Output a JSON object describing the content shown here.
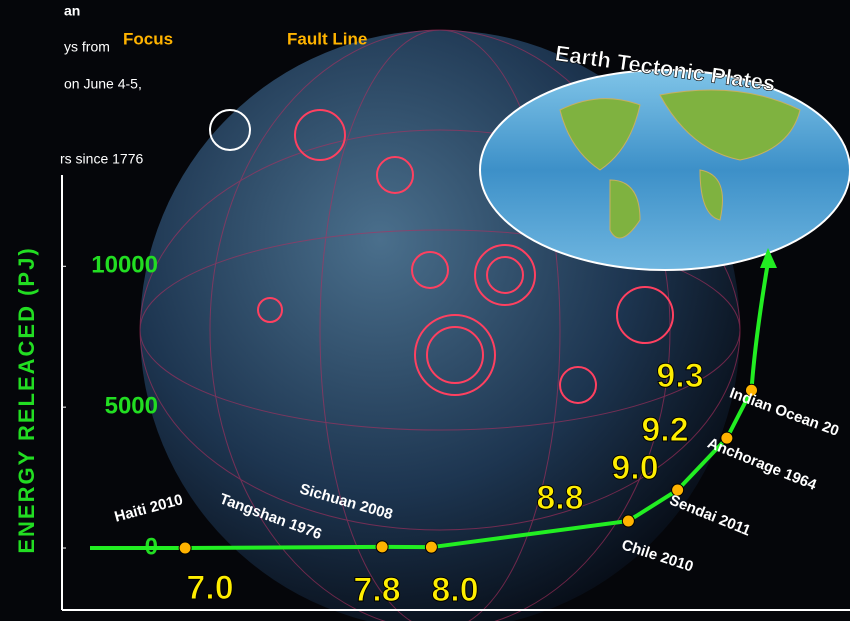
{
  "fragments": [
    "an",
    "ys from",
    "on June 4-5,",
    "rs since 1776"
  ],
  "labels": {
    "focus": "Focus",
    "fault_line": "Fault Line",
    "map_title": "Earth Tectonic Plates"
  },
  "chart_data": {
    "type": "line",
    "y_label": "ENERGY RELEACED  (PJ)",
    "x": [
      7.0,
      7.8,
      8.0,
      8.8,
      9.0,
      9.2,
      9.3
    ],
    "x_labels": [
      "7.0",
      "7.8",
      "8.0",
      "8.8",
      "9.0",
      "9.2",
      "9.3"
    ],
    "point_labels": [
      "Haiti 2010",
      "Tangshan 1976",
      "Sichuan 2008",
      "Chile 2010",
      "Sendai 2011",
      "Anchorage 1964",
      "Indian Ocean 20"
    ],
    "values": [
      0,
      40,
      30,
      960,
      2060,
      3900,
      5600
    ],
    "xlim": [
      6.5,
      9.7
    ],
    "ylim": [
      -2200,
      13240
    ],
    "yticks": [
      0,
      5000,
      10000
    ],
    "color": "#22ee22",
    "point_color": "#ffb300"
  }
}
